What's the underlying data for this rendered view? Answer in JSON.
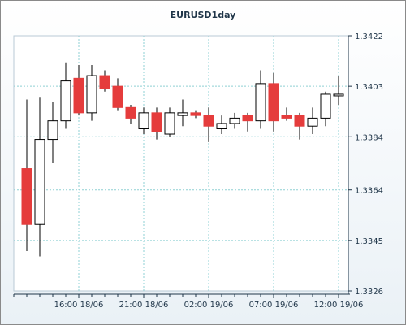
{
  "chart_data": {
    "type": "candlestick",
    "title": "EURUSD1day",
    "xlabel": "",
    "ylabel": "",
    "ylim": [
      1.3326,
      1.3422
    ],
    "y_ticks": [
      "1.3422",
      "1.3403",
      "1.3384",
      "1.3364",
      "1.3345",
      "1.3326"
    ],
    "x_ticks": [
      "16:00 18/06",
      "21:00 18/06",
      "02:00 19/06",
      "07:00 19/06",
      "12:00 19/06"
    ],
    "grid": true,
    "colors": {
      "up": "#ffffff",
      "down": "#e53c3c",
      "wick": "#000000",
      "grid": "#8fd0d4"
    },
    "candles": [
      {
        "open": 1.3372,
        "high": 1.3398,
        "low": 1.3341,
        "close": 1.3351
      },
      {
        "open": 1.3351,
        "high": 1.3399,
        "low": 1.3339,
        "close": 1.3383
      },
      {
        "open": 1.3383,
        "high": 1.3397,
        "low": 1.3374,
        "close": 1.339
      },
      {
        "open": 1.339,
        "high": 1.3412,
        "low": 1.3387,
        "close": 1.3405
      },
      {
        "open": 1.3406,
        "high": 1.3411,
        "low": 1.3392,
        "close": 1.3393
      },
      {
        "open": 1.3393,
        "high": 1.3411,
        "low": 1.339,
        "close": 1.3407
      },
      {
        "open": 1.3407,
        "high": 1.3409,
        "low": 1.3401,
        "close": 1.3402
      },
      {
        "open": 1.3403,
        "high": 1.3406,
        "low": 1.3394,
        "close": 1.3395
      },
      {
        "open": 1.3395,
        "high": 1.3396,
        "low": 1.3389,
        "close": 1.3391
      },
      {
        "open": 1.3387,
        "high": 1.3395,
        "low": 1.3385,
        "close": 1.3393
      },
      {
        "open": 1.3393,
        "high": 1.3395,
        "low": 1.3383,
        "close": 1.3386
      },
      {
        "open": 1.3385,
        "high": 1.3395,
        "low": 1.3384,
        "close": 1.3393
      },
      {
        "open": 1.3392,
        "high": 1.3398,
        "low": 1.3388,
        "close": 1.3393
      },
      {
        "open": 1.3393,
        "high": 1.3394,
        "low": 1.3391,
        "close": 1.3392
      },
      {
        "open": 1.3392,
        "high": 1.3395,
        "low": 1.3382,
        "close": 1.3388
      },
      {
        "open": 1.3387,
        "high": 1.3392,
        "low": 1.3385,
        "close": 1.3389
      },
      {
        "open": 1.3389,
        "high": 1.3393,
        "low": 1.3387,
        "close": 1.3391
      },
      {
        "open": 1.3392,
        "high": 1.3393,
        "low": 1.3386,
        "close": 1.339
      },
      {
        "open": 1.339,
        "high": 1.3409,
        "low": 1.3387,
        "close": 1.3404
      },
      {
        "open": 1.3404,
        "high": 1.3408,
        "low": 1.3386,
        "close": 1.339
      },
      {
        "open": 1.3392,
        "high": 1.3395,
        "low": 1.339,
        "close": 1.3391
      },
      {
        "open": 1.3392,
        "high": 1.3393,
        "low": 1.3383,
        "close": 1.3388
      },
      {
        "open": 1.3388,
        "high": 1.3395,
        "low": 1.3385,
        "close": 1.3391
      },
      {
        "open": 1.3391,
        "high": 1.3401,
        "low": 1.3388,
        "close": 1.34
      },
      {
        "open": 1.34,
        "high": 1.3407,
        "low": 1.3396,
        "close": 1.34
      }
    ]
  }
}
